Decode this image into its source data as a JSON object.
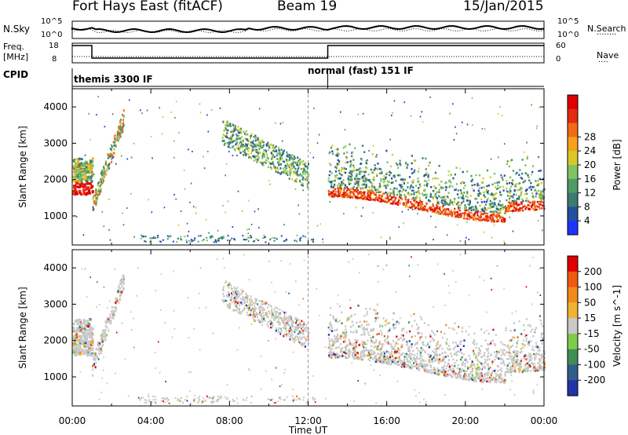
{
  "header": {
    "station": "Fort Hays East (fitACF)",
    "beam": "Beam 19",
    "date": "15/Jan/2015"
  },
  "strip": {
    "nsky_label": "N.Sky",
    "nsearch_label": "N.Search",
    "nsearch_line": "........",
    "freq_label_line1": "Freq.",
    "freq_label_line2": "[MHz]",
    "nave_label": "Nave",
    "nave_line": "....",
    "cpid_label": "CPID",
    "noise_left_ticks": [
      "10^5",
      "10^0"
    ],
    "noise_right_ticks": [
      "10^5",
      "10^0"
    ],
    "freq_ticks": [
      "18",
      "8"
    ],
    "nave_ticks": [
      "60",
      "0"
    ],
    "modes": [
      {
        "name": "themis 3300 IF",
        "start_hour": 0
      },
      {
        "name": "normal (fast) 151 IF",
        "start_hour": 13
      }
    ]
  },
  "chart_data": [
    {
      "type": "heatmap",
      "panel": "power",
      "xlabel": "Time UT",
      "ylabel": "Slant Range [km]",
      "colorbar_label": "Power [dB]",
      "xlim": [
        0,
        24
      ],
      "ylim": [
        200,
        4500
      ],
      "x_ticks": [
        "00:00",
        "04:00",
        "08:00",
        "12:00",
        "16:00",
        "20:00",
        "00:00"
      ],
      "y_ticks": [
        1000,
        2000,
        3000,
        4000
      ],
      "colorbar_ticks": [
        4,
        8,
        12,
        16,
        20,
        24,
        28
      ],
      "colorbar_colors": [
        "#1f33ff",
        "#234fa0",
        "#3a7a73",
        "#4e9b66",
        "#7fc463",
        "#d8c82a",
        "#f5a21a",
        "#f06b14",
        "#e52b10",
        "#e00000"
      ]
    },
    {
      "type": "heatmap",
      "panel": "velocity",
      "xlabel": "Time UT",
      "ylabel": "Slant Range [km]",
      "colorbar_label": "Velocity [m s^-1]",
      "xlim": [
        0,
        24
      ],
      "ylim": [
        200,
        4500
      ],
      "x_ticks": [
        "00:00",
        "04:00",
        "08:00",
        "12:00",
        "16:00",
        "20:00",
        "00:00"
      ],
      "y_ticks": [
        1000,
        2000,
        3000,
        4000
      ],
      "colorbar_ticks": [
        200,
        100,
        50,
        15,
        -15,
        -50,
        -100,
        -200
      ],
      "colorbar_colors": [
        "#2233aa",
        "#2f5e8a",
        "#3f8f55",
        "#7fcc4a",
        "#c9c9c9",
        "#f2b235",
        "#f08a1a",
        "#ef5a10",
        "#e00000"
      ]
    }
  ],
  "colors": {
    "ground_scatter": "#c8c8c8",
    "frame": "#000000",
    "midnight_dash": "#9a9a9a"
  }
}
